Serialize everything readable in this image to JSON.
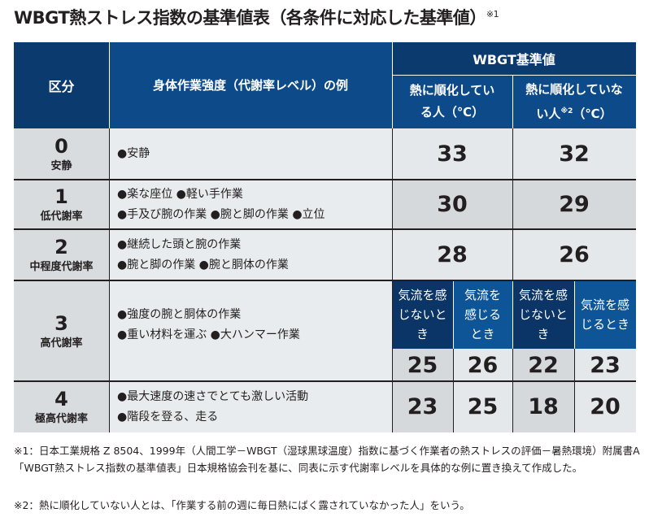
{
  "title": "WBGT熱ストレス指数の基準値表（各条件に対応した基準値）",
  "title_note": "※1",
  "headers": {
    "category": "区分",
    "activity": "身体作業強度（代謝率レベル）の例",
    "wbgt": "WBGT基準値",
    "acclimatized": "熱に順化している人（℃）",
    "not_acclimatized_a": "熱に順化していない人",
    "not_acclimatized_note": "※2",
    "not_acclimatized_b": "（℃）"
  },
  "airflow": {
    "no": "気流を感じないとき",
    "yes": "気流を感じるとき"
  },
  "rows": [
    {
      "level": "0",
      "name": "安静",
      "examples": [
        "●安静"
      ],
      "values": [
        "33",
        "32"
      ]
    },
    {
      "level": "1",
      "name": "低代謝率",
      "examples": [
        "●楽な座位 ●軽い手作業",
        "●手及び腕の作業 ●腕と脚の作業 ●立位"
      ],
      "values": [
        "30",
        "29"
      ]
    },
    {
      "level": "2",
      "name": "中程度代謝率",
      "examples": [
        "●継続した頭と腕の作業",
        "●腕と脚の作業 ●腕と胴体の作業"
      ],
      "values": [
        "28",
        "26"
      ]
    },
    {
      "level": "3",
      "name": "高代謝率",
      "examples": [
        "●強度の腕と胴体の作業",
        "●重い材料を運ぶ ●大ハンマー作業"
      ],
      "values": [
        "25",
        "26",
        "22",
        "23"
      ]
    },
    {
      "level": "4",
      "name": "極高代謝率",
      "examples": [
        "●最大速度の速さでとても激しい活動",
        "●階段を登る、走る"
      ],
      "values": [
        "23",
        "25",
        "18",
        "20"
      ]
    }
  ],
  "notes": [
    {
      "mark": "※1：",
      "text": "日本工業規格 Z 8504、1999年（人間工学－WBGT（湿球黒球温度）指数に基づく作業者の熱ストレスの評価－暑熱環境）附属書A「WBGT熱ストレス指数の基準値表」日本規格協会刊を基に、同表に示す代謝率レベルを具体的な例に置き換えて作成した。"
    },
    {
      "mark": "※2：",
      "text": "熱に順化していない人とは、「作業する前の週に毎日熱にばく露されていなかった人」をいう。"
    }
  ]
}
